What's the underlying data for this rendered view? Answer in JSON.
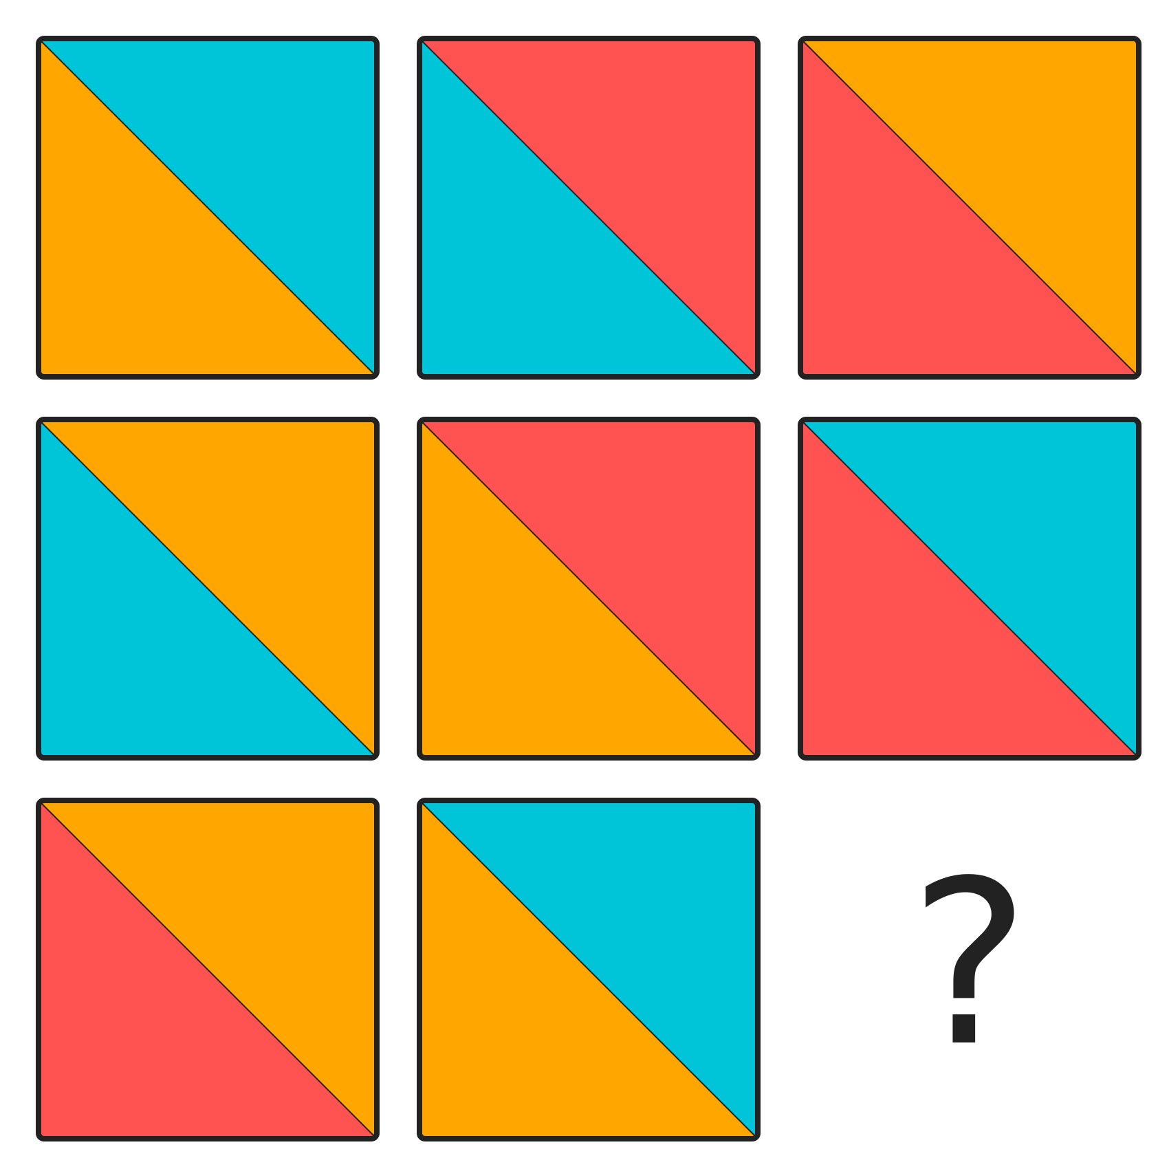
{
  "colors": {
    "cyan": "#00C5D9",
    "orange": "#FFA600",
    "red": "#FF5352",
    "border": "#222222",
    "background": "#FFFFFF"
  },
  "grid": {
    "rows": 3,
    "columns": 3,
    "tiles": [
      {
        "row": 0,
        "col": 0,
        "upper_right": "cyan",
        "lower_left": "orange"
      },
      {
        "row": 0,
        "col": 1,
        "upper_right": "red",
        "lower_left": "cyan"
      },
      {
        "row": 0,
        "col": 2,
        "upper_right": "orange",
        "lower_left": "red"
      },
      {
        "row": 1,
        "col": 0,
        "upper_right": "orange",
        "lower_left": "cyan"
      },
      {
        "row": 1,
        "col": 1,
        "upper_right": "red",
        "lower_left": "orange"
      },
      {
        "row": 1,
        "col": 2,
        "upper_right": "cyan",
        "lower_left": "red"
      },
      {
        "row": 2,
        "col": 0,
        "upper_right": "orange",
        "lower_left": "red"
      },
      {
        "row": 2,
        "col": 1,
        "upper_right": "cyan",
        "lower_left": "orange"
      }
    ],
    "missing": {
      "row": 2,
      "col": 2,
      "label": "?"
    }
  }
}
